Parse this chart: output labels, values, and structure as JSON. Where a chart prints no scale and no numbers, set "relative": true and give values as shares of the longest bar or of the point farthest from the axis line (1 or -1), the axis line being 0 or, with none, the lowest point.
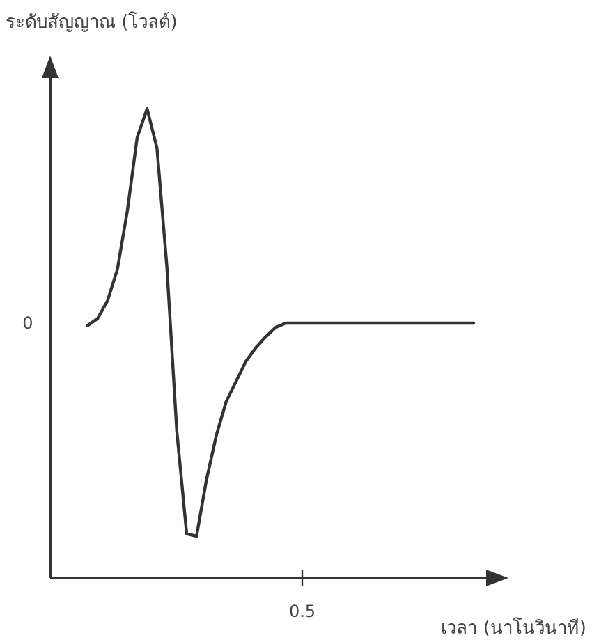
{
  "chart_data": {
    "type": "line",
    "relative": true,
    "xlabel": "เวลา (นาโนวินาที)",
    "ylabel": "ระดับสัญญาณ (โวลต์)",
    "categories": [
      null,
      null,
      null,
      null,
      null,
      null,
      null,
      null,
      null,
      null,
      null,
      null,
      null,
      null,
      null,
      null,
      null,
      null,
      null,
      null,
      null,
      null,
      null,
      null,
      null,
      null,
      null,
      null,
      null,
      null,
      null,
      null,
      null,
      null,
      null,
      null,
      null,
      null,
      null,
      null
    ],
    "annotations": [
      "0",
      "0.5"
    ],
    "series": [
      {
        "color": "#333333",
        "values": [
          0.538,
          0.553,
          0.591,
          0.658,
          0.782,
          0.939,
          1,
          0.916,
          0.663,
          0.314,
          0.094,
          0.089,
          0.209,
          0.304,
          0.376,
          0.419,
          0.462,
          0.491,
          0.514,
          0.534,
          0.543,
          0.543,
          0.543,
          0.543,
          0.543,
          0.543,
          0.543,
          0.543,
          0.543,
          0.543,
          0.543,
          0.543,
          0.543,
          0.543,
          0.543,
          0.543,
          0.543,
          0.543,
          0.543,
          0.543
        ]
      }
    ],
    "marker": "none",
    "line_style": "solid"
  }
}
